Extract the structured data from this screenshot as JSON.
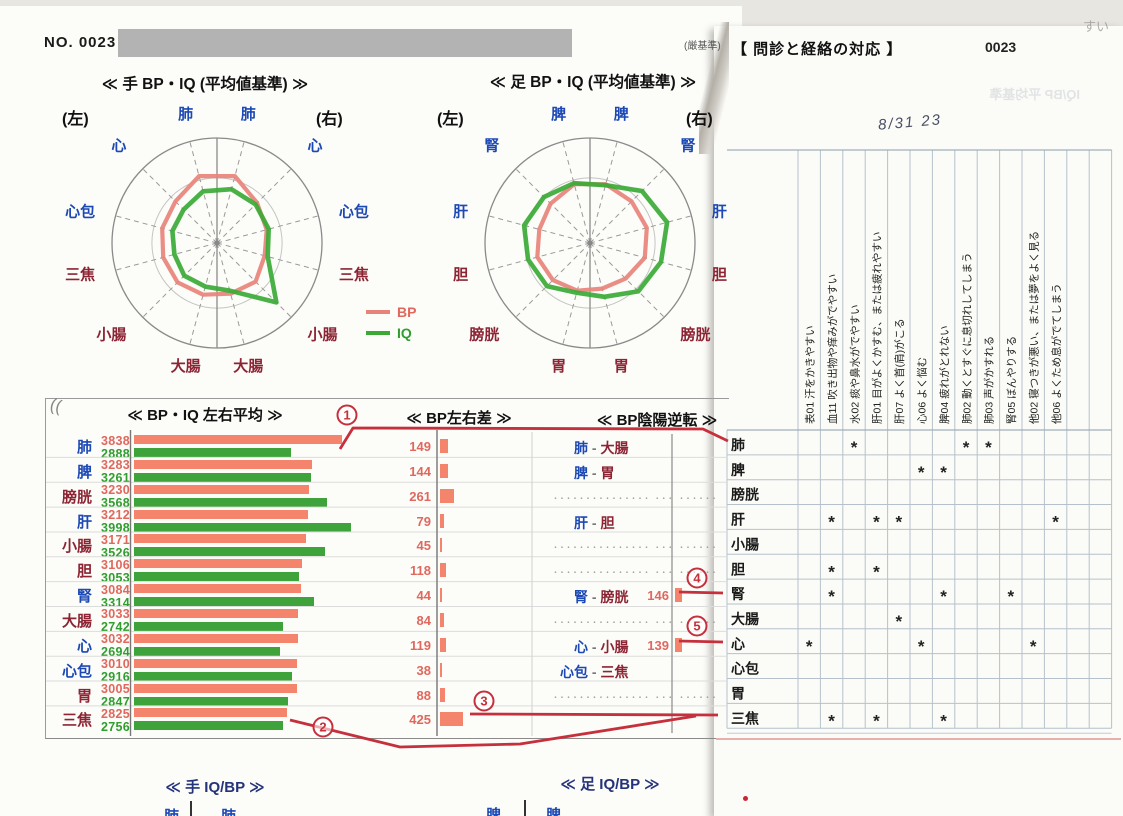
{
  "colors": {
    "bp": "#e8837a",
    "iq": "#3aaa35",
    "bar_bp": "#f5846c",
    "bar_iq": "#3fa33c",
    "val_bp": "#e0685e",
    "val_iq": "#2f9e2f",
    "yin_blue": "#1d49b5",
    "yang_maroon": "#8c2433",
    "annotation_red": "#c5303c",
    "grid_gray": "#8a8a8a",
    "table_grid": "#b6c2cb"
  },
  "header": {
    "no_label": "NO. 0023",
    "strict_note": "(厳基準)",
    "right_title": "【 問診と経絡の対応 】",
    "right_no": "0023",
    "handwritten_date": "8/31 23"
  },
  "legend": {
    "bp": "BP",
    "iq": "IQ"
  },
  "scan_artifacts": {
    "corner_text": "すい",
    "bleedthrough_text": "IQ/BP 平均基準",
    "page_curl": "(("
  },
  "footer": {
    "hand_title": "≪ 手 IQ/BP ≫",
    "foot_title": "≪ 足 IQ/BP ≫",
    "partial": {
      "hand": [
        "肺",
        "肺"
      ],
      "foot": [
        "脾",
        "脾"
      ]
    }
  },
  "annotations": {
    "numbers": [
      "1",
      "2",
      "3",
      "4",
      "5"
    ]
  },
  "chart_data": [
    {
      "id": "radar_hand",
      "type": "radar",
      "title": "≪ 手 BP・IQ (平均値基準) ≫",
      "side_left": "(左)",
      "side_right": "(右)",
      "spokes": [
        {
          "name": "肺",
          "side": "右",
          "yin": true
        },
        {
          "name": "心",
          "side": "右",
          "yin": true
        },
        {
          "name": "心包",
          "side": "右",
          "yin": true
        },
        {
          "name": "三焦",
          "side": "右",
          "yin": false
        },
        {
          "name": "小腸",
          "side": "右",
          "yin": false
        },
        {
          "name": "大腸",
          "side": "右",
          "yin": false
        },
        {
          "name": "大腸",
          "side": "左",
          "yin": false
        },
        {
          "name": "小腸",
          "side": "左",
          "yin": false
        },
        {
          "name": "三焦",
          "side": "左",
          "yin": false
        },
        {
          "name": "心包",
          "side": "左",
          "yin": true
        },
        {
          "name": "心",
          "side": "左",
          "yin": true
        },
        {
          "name": "肺",
          "side": "左",
          "yin": true
        }
      ],
      "series": [
        {
          "name": "BP",
          "values": [
            0.66,
            0.54,
            0.49,
            0.47,
            0.52,
            0.5,
            0.51,
            0.53,
            0.53,
            0.54,
            0.56,
            0.66
          ]
        },
        {
          "name": "IQ",
          "values": [
            0.53,
            0.52,
            0.51,
            0.5,
            0.8,
            0.47,
            0.43,
            0.44,
            0.42,
            0.44,
            0.45,
            0.51
          ]
        }
      ]
    },
    {
      "id": "radar_foot",
      "type": "radar",
      "title": "≪ 足 BP・IQ (平均値基準) ≫",
      "side_left": "(左)",
      "side_right": "(右)",
      "spokes": [
        {
          "name": "脾",
          "side": "右",
          "yin": true
        },
        {
          "name": "腎",
          "side": "右",
          "yin": true
        },
        {
          "name": "肝",
          "side": "右",
          "yin": true
        },
        {
          "name": "胆",
          "side": "右",
          "yin": false
        },
        {
          "name": "膀胱",
          "side": "右",
          "yin": false
        },
        {
          "name": "胃",
          "side": "右",
          "yin": false
        },
        {
          "name": "胃",
          "side": "左",
          "yin": false
        },
        {
          "name": "膀胱",
          "side": "左",
          "yin": false
        },
        {
          "name": "胆",
          "side": "左",
          "yin": false
        },
        {
          "name": "肝",
          "side": "左",
          "yin": true
        },
        {
          "name": "腎",
          "side": "左",
          "yin": true
        },
        {
          "name": "脾",
          "side": "左",
          "yin": true
        }
      ],
      "series": [
        {
          "name": "BP",
          "values": [
            0.58,
            0.56,
            0.56,
            0.54,
            0.48,
            0.45,
            0.47,
            0.5,
            0.52,
            0.5,
            0.53,
            0.58
          ]
        },
        {
          "name": "IQ",
          "values": [
            0.57,
            0.7,
            0.76,
            0.7,
            0.65,
            0.53,
            0.49,
            0.58,
            0.61,
            0.65,
            0.62,
            0.59
          ]
        }
      ]
    },
    {
      "id": "avg",
      "type": "bar",
      "title": "≪ BP・IQ 左右平均 ≫",
      "categories": [
        {
          "name": "肺",
          "yin": true
        },
        {
          "name": "脾",
          "yin": true
        },
        {
          "name": "膀胱",
          "yin": false
        },
        {
          "name": "肝",
          "yin": true
        },
        {
          "name": "小腸",
          "yin": false
        },
        {
          "name": "胆",
          "yin": false
        },
        {
          "name": "腎",
          "yin": true
        },
        {
          "name": "大腸",
          "yin": false
        },
        {
          "name": "心",
          "yin": true
        },
        {
          "name": "心包",
          "yin": true
        },
        {
          "name": "胃",
          "yin": false
        },
        {
          "name": "三焦",
          "yin": false
        }
      ],
      "series": [
        {
          "name": "BP",
          "values": [
            3838,
            3283,
            3230,
            3212,
            3171,
            3106,
            3084,
            3033,
            3032,
            3010,
            3005,
            2825
          ]
        },
        {
          "name": "IQ",
          "values": [
            2888,
            3261,
            3568,
            3998,
            3526,
            3053,
            3314,
            2742,
            2694,
            2916,
            2847,
            2756
          ]
        }
      ]
    },
    {
      "id": "diff",
      "type": "bar",
      "title": "≪ BP左右差 ≫",
      "values": [
        149,
        144,
        261,
        79,
        45,
        118,
        44,
        84,
        119,
        38,
        88,
        425
      ]
    },
    {
      "id": "reversal",
      "type": "bar",
      "title": "≪ BP陰陽逆転 ≫",
      "rows": [
        {
          "yin": "肺",
          "yang": "大腸",
          "value": null,
          "dots": false
        },
        {
          "yin": "脾",
          "yang": "胃",
          "value": null,
          "dots": false
        },
        {
          "yin": null,
          "yang": null,
          "value": null,
          "dots": true
        },
        {
          "yin": "肝",
          "yang": "胆",
          "value": null,
          "dots": false
        },
        {
          "yin": null,
          "yang": null,
          "value": null,
          "dots": true
        },
        {
          "yin": null,
          "yang": null,
          "value": null,
          "dots": true
        },
        {
          "yin": "腎",
          "yang": "膀胱",
          "value": 146,
          "dots": false
        },
        {
          "yin": null,
          "yang": null,
          "value": null,
          "dots": true
        },
        {
          "yin": "心",
          "yang": "小腸",
          "value": 139,
          "dots": false
        },
        {
          "yin": "心包",
          "yang": "三焦",
          "value": null,
          "dots": false
        },
        {
          "yin": null,
          "yang": null,
          "value": null,
          "dots": true
        },
        {
          "yin": null,
          "yang": null,
          "value": null,
          "dots": false
        }
      ]
    },
    {
      "id": "symptom_table",
      "type": "table",
      "title": "【 問診と経絡の対応 】",
      "columns": [
        {
          "code": "表01",
          "label": "汗をかきやすい"
        },
        {
          "code": "血11",
          "label": "吹き出物や痒みがでやすい"
        },
        {
          "code": "水02",
          "label": "痰や鼻水がでやすい"
        },
        {
          "code": "肝01",
          "label": "目がよくかすむ、または疲れやすい"
        },
        {
          "code": "肝07",
          "label": "よく首(肩)がこる"
        },
        {
          "code": "心06",
          "label": "よく悩む"
        },
        {
          "code": "脾04",
          "label": "疲れがとれない"
        },
        {
          "code": "肺02",
          "label": "動くとすぐに息切れしてしまう"
        },
        {
          "code": "肺03",
          "label": "声がかすれる"
        },
        {
          "code": "腎05",
          "label": "ぼんやりする"
        },
        {
          "code": "他02",
          "label": "寝つきが悪い、または夢をよく見る"
        },
        {
          "code": "他06",
          "label": "よくため息がでてしまう"
        }
      ],
      "rows": [
        {
          "meridian": "肺",
          "marks": [
            "水02",
            "肺02",
            "肺03"
          ]
        },
        {
          "meridian": "脾",
          "marks": [
            "心06",
            "脾04"
          ]
        },
        {
          "meridian": "膀胱",
          "marks": []
        },
        {
          "meridian": "肝",
          "marks": [
            "血11",
            "肝01",
            "肝07",
            "他06"
          ]
        },
        {
          "meridian": "小腸",
          "marks": []
        },
        {
          "meridian": "胆",
          "marks": [
            "血11",
            "肝01"
          ]
        },
        {
          "meridian": "腎",
          "marks": [
            "血11",
            "脾04",
            "腎05"
          ]
        },
        {
          "meridian": "大腸",
          "marks": [
            "肝07"
          ]
        },
        {
          "meridian": "心",
          "marks": [
            "表01",
            "心06",
            "他02"
          ]
        },
        {
          "meridian": "心包",
          "marks": []
        },
        {
          "meridian": "胃",
          "marks": []
        },
        {
          "meridian": "三焦",
          "marks": [
            "血11",
            "肝01",
            "脾04"
          ]
        }
      ]
    }
  ]
}
